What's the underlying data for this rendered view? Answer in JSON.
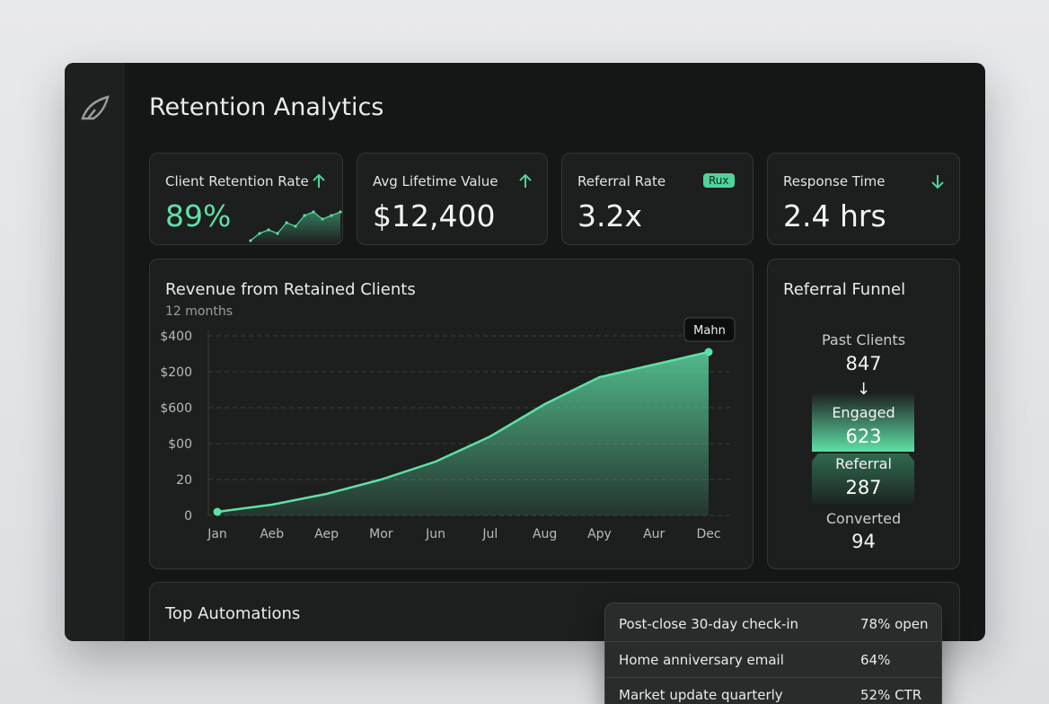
{
  "header": {
    "title": "Retention Analytics"
  },
  "kpis": [
    {
      "label": "Client Retention Rate",
      "value": "89%",
      "sparkline": [
        1,
        3,
        4,
        3,
        6,
        5,
        8,
        9,
        7,
        8,
        9
      ]
    },
    {
      "label": "Avg Lifetime Value",
      "value": "$12,400"
    },
    {
      "label": "Referral Rate",
      "value": "3.2x",
      "badge": "Rux"
    },
    {
      "label": "Response Time",
      "value": "2.4 hrs"
    }
  ],
  "chart_data": {
    "type": "area",
    "title": "Revenue from Retained Clients",
    "subtitle": "12 months",
    "categories": [
      "Jan",
      "Aeb",
      "Aep",
      "Mor",
      "Jun",
      "Jul",
      "Aug",
      "Apy",
      "Aur",
      "Dec"
    ],
    "values": [
      0.1,
      0.3,
      0.6,
      1.0,
      1.5,
      2.2,
      3.1,
      3.85,
      4.2,
      4.55
    ],
    "ylim": [
      0,
      5
    ],
    "yticks": [
      {
        "value": 0,
        "label": "0"
      },
      {
        "value": 1,
        "label": "20"
      },
      {
        "value": 2,
        "label": "$00"
      },
      {
        "value": 3,
        "label": "$600"
      },
      {
        "value": 4,
        "label": "$200"
      },
      {
        "value": 5,
        "label": "$400"
      }
    ],
    "tooltip": "Mahn",
    "color": "#5ee0a6",
    "grid": true
  },
  "funnel": {
    "title": "Referral Funnel",
    "stages": [
      {
        "label": "Past Clients",
        "value": "847"
      },
      {
        "label": "Engaged",
        "value": "623"
      },
      {
        "label": "Referral",
        "value": "287"
      },
      {
        "label": "Converted",
        "value": "94"
      }
    ]
  },
  "automations": {
    "title": "Top Automations",
    "rows": [
      [
        "Post-close 30-day check-in",
        "78% open"
      ],
      [
        "Home anniversary email",
        "64%"
      ],
      [
        "Market update quarterly",
        "52% CTR"
      ]
    ]
  }
}
